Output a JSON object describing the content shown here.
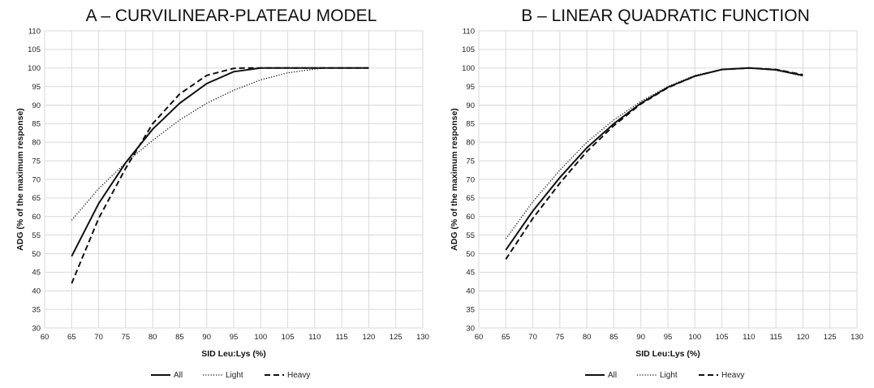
{
  "chart_data": [
    {
      "type": "line",
      "title": "A – CURVILINEAR-PLATEAU MODEL",
      "xlabel": "SID Leu:Lys (%)",
      "ylabel": "ADG (% of the maximum response)",
      "xlim": [
        60,
        130
      ],
      "ylim": [
        30,
        110
      ],
      "x_ticks": [
        "60",
        "65",
        "70",
        "75",
        "80",
        "85",
        "90",
        "95",
        "100",
        "105",
        "110",
        "115",
        "120",
        "125",
        "130"
      ],
      "y_ticks": [
        "30",
        "35",
        "40",
        "45",
        "50",
        "55",
        "60",
        "65",
        "70",
        "75",
        "80",
        "85",
        "90",
        "95",
        "100",
        "105",
        "110"
      ],
      "grid": true,
      "legend_position": "bottom",
      "series": [
        {
          "name": "All",
          "line_style": "solid",
          "x": [
            65,
            70,
            75,
            80,
            85,
            90,
            95,
            100,
            105,
            110,
            115,
            120
          ],
          "y": [
            49.3,
            63.5,
            74.5,
            83.5,
            90.5,
            95.8,
            99.0,
            100,
            100,
            100,
            100,
            100
          ]
        },
        {
          "name": "Light",
          "line_style": "dotted",
          "x": [
            65,
            70,
            75,
            80,
            85,
            90,
            95,
            100,
            105,
            110,
            112,
            115,
            120
          ],
          "y": [
            59.0,
            67.5,
            74.5,
            80.5,
            86.0,
            90.5,
            94.0,
            96.8,
            98.7,
            99.7,
            100,
            100,
            100
          ]
        },
        {
          "name": "Heavy",
          "line_style": "dashed",
          "x": [
            65,
            70,
            75,
            80,
            85,
            90,
            95,
            97,
            100,
            105,
            110,
            115,
            120
          ],
          "y": [
            42.0,
            59.5,
            73.0,
            85.0,
            93.0,
            98.0,
            99.9,
            100,
            100,
            100,
            100,
            100,
            100
          ]
        }
      ]
    },
    {
      "type": "line",
      "title": "B – LINEAR QUADRATIC FUNCTION",
      "xlabel": "SID Leu:Lys (%)",
      "ylabel": "ADG (% of the maximum response)",
      "xlim": [
        60,
        130
      ],
      "ylim": [
        30,
        110
      ],
      "x_ticks": [
        "60",
        "65",
        "70",
        "75",
        "80",
        "85",
        "90",
        "95",
        "100",
        "105",
        "110",
        "115",
        "120",
        "125",
        "130"
      ],
      "y_ticks": [
        "30",
        "35",
        "40",
        "45",
        "50",
        "55",
        "60",
        "65",
        "70",
        "75",
        "80",
        "85",
        "90",
        "95",
        "100",
        "105",
        "110"
      ],
      "grid": true,
      "legend_position": "bottom",
      "series": [
        {
          "name": "All",
          "line_style": "solid",
          "x": [
            65,
            70,
            75,
            80,
            85,
            90,
            95,
            100,
            105,
            110,
            115,
            120
          ],
          "y": [
            51.0,
            61.5,
            70.5,
            78.5,
            85.0,
            90.5,
            94.8,
            97.8,
            99.6,
            100,
            99.5,
            98.0
          ]
        },
        {
          "name": "Light",
          "line_style": "dotted",
          "x": [
            65,
            70,
            75,
            80,
            85,
            90,
            95,
            100,
            105,
            110,
            115,
            120
          ],
          "y": [
            54.0,
            64.0,
            72.5,
            80.0,
            86.0,
            91.0,
            95.0,
            98.0,
            99.6,
            100,
            99.4,
            97.8
          ]
        },
        {
          "name": "Heavy",
          "line_style": "dashed",
          "x": [
            65,
            70,
            75,
            80,
            85,
            90,
            95,
            100,
            105,
            110,
            115,
            120
          ],
          "y": [
            48.5,
            59.5,
            69.0,
            77.5,
            84.5,
            90.3,
            94.7,
            97.8,
            99.6,
            100,
            99.6,
            98.2
          ]
        }
      ]
    }
  ]
}
